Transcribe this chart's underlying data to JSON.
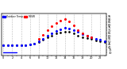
{
  "background_color": "#ffffff",
  "grid_color": "#bbbbbb",
  "hours": [
    0,
    1,
    2,
    3,
    4,
    5,
    6,
    7,
    8,
    9,
    10,
    11,
    12,
    13,
    14,
    15,
    16,
    17,
    18,
    19,
    20,
    21,
    22,
    23
  ],
  "temp_outdoor": [
    43,
    43,
    43,
    43,
    43,
    43,
    44,
    46,
    50,
    55,
    60,
    65,
    69,
    72,
    74,
    73,
    70,
    67,
    63,
    60,
    57,
    55,
    53,
    51
  ],
  "thsw_index": [
    null,
    null,
    null,
    null,
    null,
    null,
    null,
    null,
    55,
    62,
    70,
    78,
    84,
    88,
    90,
    86,
    79,
    71,
    65,
    61,
    57,
    null,
    null,
    null
  ],
  "wind_chill": [
    30,
    30,
    30,
    30,
    null,
    null,
    null,
    null,
    null,
    null,
    null,
    null,
    null,
    null,
    null,
    null,
    null,
    null,
    null,
    null,
    null,
    null,
    null,
    null
  ],
  "black_series": [
    43,
    43,
    43,
    43,
    43,
    43,
    44,
    46,
    49,
    53,
    57,
    61,
    64,
    66,
    68,
    67,
    64,
    61,
    58,
    56,
    54,
    52,
    50,
    49
  ],
  "temp_color": "#0000ff",
  "thsw_color": "#ff0000",
  "wind_color": "#0000ff",
  "black_color": "#000000",
  "ylim": [
    25,
    100
  ],
  "yticks_right": [
    30,
    35,
    40,
    45,
    50,
    55,
    60,
    65,
    70,
    75,
    80,
    85,
    90,
    95
  ],
  "legend_temp_label": "Outdoor Temp",
  "legend_thsw_label": "THSW",
  "marker_size": 1.2,
  "figsize": [
    1.6,
    0.87
  ],
  "dpi": 100
}
